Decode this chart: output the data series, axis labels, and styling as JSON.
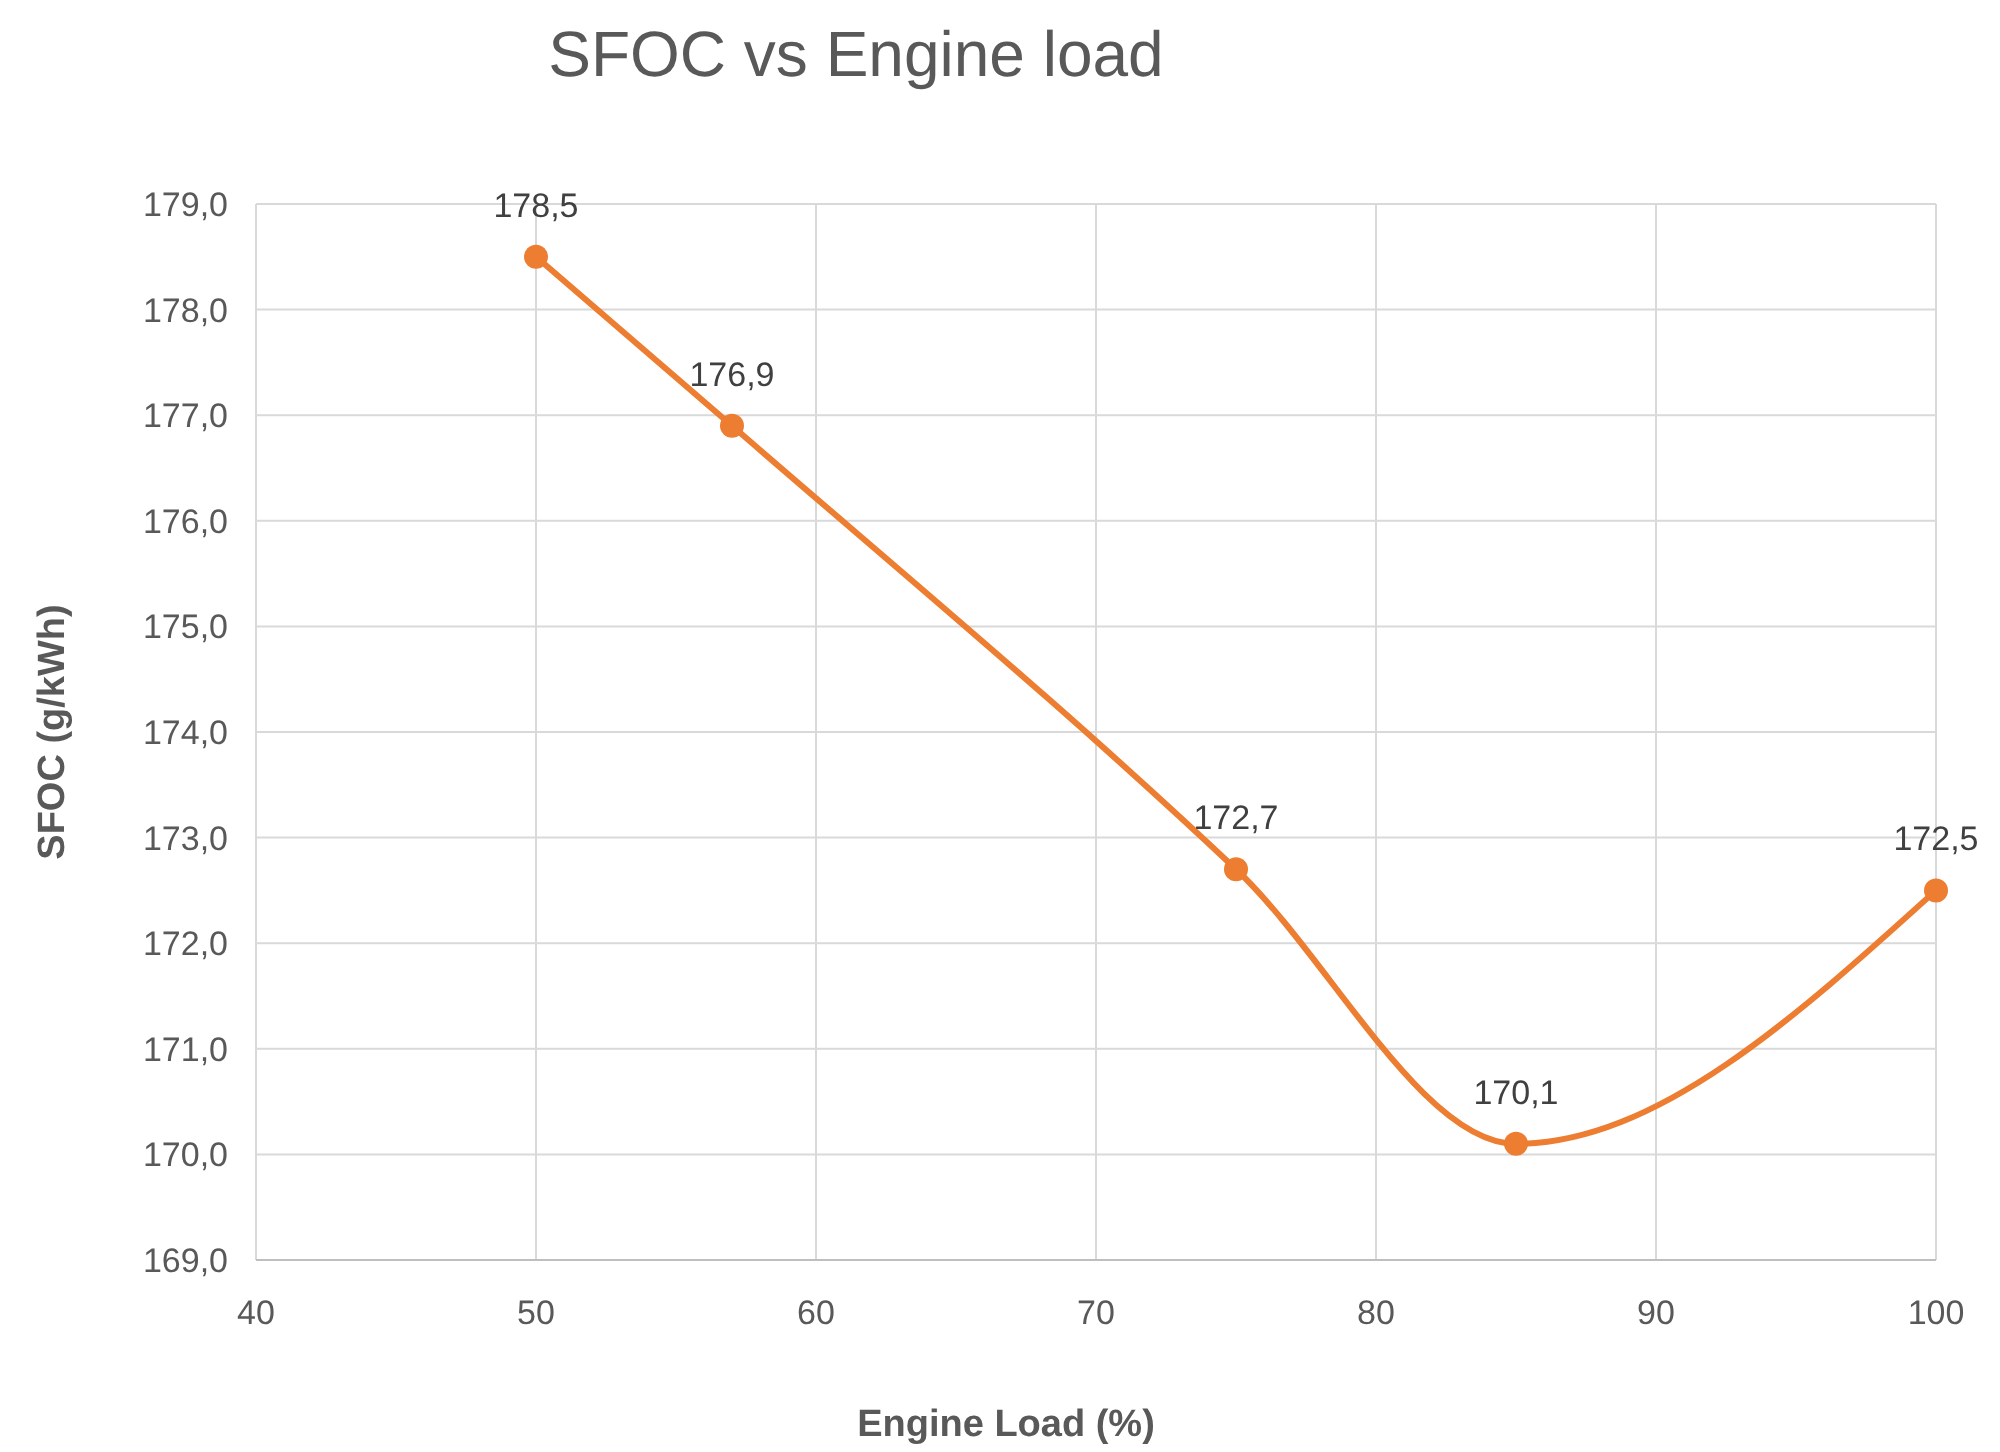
{
  "chart_data": {
    "type": "line",
    "title": "SFOC vs Engine load",
    "xlabel": "Engine Load (%)",
    "ylabel": "SFOC (g/kWh)",
    "x": [
      50,
      57,
      75,
      85,
      100
    ],
    "series": [
      {
        "color": "#ed7d31",
        "values": [
          178.5,
          176.9,
          172.7,
          170.1,
          172.5
        ],
        "value_labels": [
          "178,5",
          "176,9",
          "172,7",
          "170,1",
          "172,5"
        ]
      }
    ],
    "xlim": [
      40,
      100
    ],
    "xticks": [
      40,
      50,
      60,
      70,
      80,
      90,
      100
    ],
    "ylim": [
      169,
      179
    ],
    "yticks": [
      {
        "value": 169,
        "label": "169,0"
      },
      {
        "value": 170,
        "label": "170,0"
      },
      {
        "value": 171,
        "label": "171,0"
      },
      {
        "value": 172,
        "label": "172,0"
      },
      {
        "value": 173,
        "label": "173,0"
      },
      {
        "value": 174,
        "label": "174,0"
      },
      {
        "value": 175,
        "label": "175,0"
      },
      {
        "value": 176,
        "label": "176,0"
      },
      {
        "value": 177,
        "label": "177,0"
      },
      {
        "value": 178,
        "label": "178,0"
      },
      {
        "value": 179,
        "label": "179,0"
      }
    ],
    "grid": true,
    "marker": "circle",
    "line_style": "solid"
  }
}
